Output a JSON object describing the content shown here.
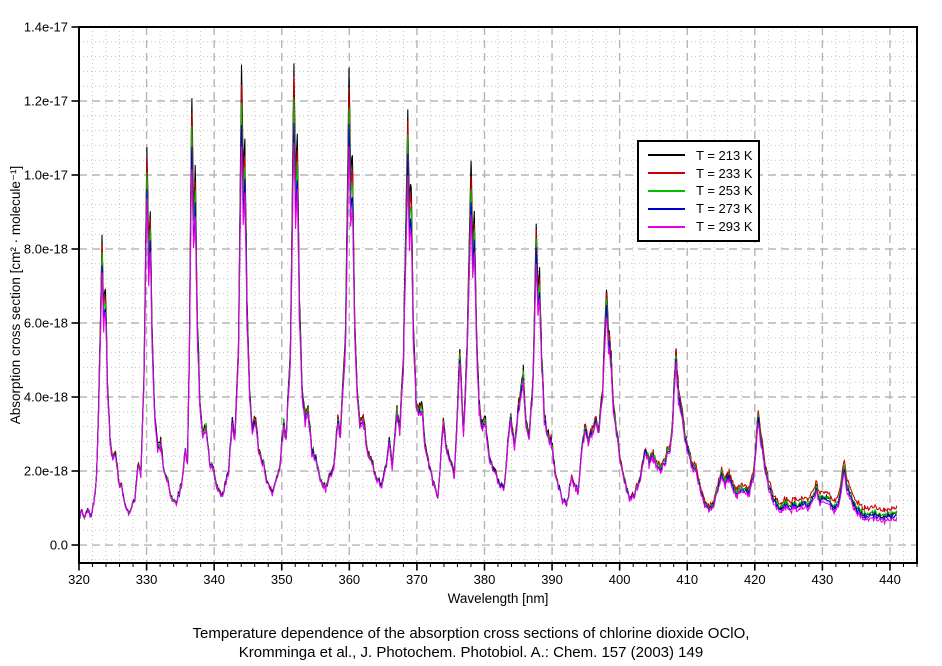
{
  "caption": {
    "line1": "Temperature dependence of the absorption cross sections of chlorine dioxide OClO,",
    "line2": "Kromminga et al., J. Photochem. Photobiol. A.: Chem. 157 (2003) 149"
  },
  "chart_data": {
    "type": "line",
    "title": "",
    "xlabel": "Wavelength [nm]",
    "ylabel": "Absorption cross section [cm² · molecule⁻¹]",
    "xlim": [
      320,
      444
    ],
    "ylim_e18": [
      -0.486,
      14.0
    ],
    "grid": {
      "major_color": "#b5b5b5",
      "minor_color": "#c6c6c6",
      "major_dash": "8 5",
      "minor_dash": "1 3"
    },
    "x_major_ticks": [
      320,
      330,
      340,
      350,
      360,
      370,
      380,
      390,
      400,
      410,
      420,
      430,
      440
    ],
    "x_minor_step_nm": 2,
    "y_major_ticks_e18": [
      0,
      2,
      4,
      6,
      8,
      10,
      12,
      14
    ],
    "y_tick_labels": [
      "0.0",
      "2.0e-18",
      "4.0e-18",
      "6.0e-18",
      "8.0e-18",
      "1.0e-17",
      "1.2e-17",
      "1.4e-17"
    ],
    "y_minor_step_e18": 0.4,
    "legend_position": "upper-right",
    "series": [
      {
        "label": "T = 213 K",
        "color": "#000000",
        "peak_compression": 0.0,
        "longwave_offset_e18": 0.0
      },
      {
        "label": "T = 233 K",
        "color": "#cc0000",
        "peak_compression": 0.04,
        "longwave_offset_e18": 0.16
      },
      {
        "label": "T = 253 K",
        "color": "#00c000",
        "peak_compression": 0.08,
        "longwave_offset_e18": 0.03
      },
      {
        "label": "T = 273 K",
        "color": "#0000cc",
        "peak_compression": 0.125,
        "longwave_offset_e18": -0.05
      },
      {
        "label": "T = 293 K",
        "color": "#e600e6",
        "peak_compression": 0.17,
        "longwave_offset_e18": -0.13
      }
    ],
    "model": {
      "note": "anchors give the T=213K cross section in 1e-18 cm2/molecule vs wavelength nm; colder->taller peaks, other temperatures derived by peak_compression (relative reduction of band maxima, valleys nearly unchanged) plus small longwave baseline offset for lambda>398nm",
      "peak_ref_e18": 13.4,
      "longwave_ramp_nm": [
        398,
        434
      ]
    },
    "anchors_213K_e18": [
      [
        320.0,
        0.78
      ],
      [
        320.4,
        0.92
      ],
      [
        320.8,
        0.7
      ],
      [
        321.3,
        0.95
      ],
      [
        321.7,
        0.78
      ],
      [
        322.2,
        1.15
      ],
      [
        322.6,
        1.9
      ],
      [
        322.9,
        3.8
      ],
      [
        323.4,
        8.45
      ],
      [
        323.65,
        6.4
      ],
      [
        323.9,
        7.1
      ],
      [
        324.2,
        4.6
      ],
      [
        324.6,
        2.9
      ],
      [
        325.0,
        2.35
      ],
      [
        325.4,
        2.55
      ],
      [
        325.9,
        1.75
      ],
      [
        326.4,
        1.55
      ],
      [
        326.9,
        1.0
      ],
      [
        327.5,
        0.85
      ],
      [
        328.3,
        1.3
      ],
      [
        328.8,
        2.3
      ],
      [
        329.15,
        1.9
      ],
      [
        329.6,
        4.5
      ],
      [
        330.05,
        10.6
      ],
      [
        330.3,
        8.2
      ],
      [
        330.55,
        8.9
      ],
      [
        330.85,
        5.6
      ],
      [
        331.25,
        3.4
      ],
      [
        331.65,
        2.7
      ],
      [
        332.1,
        2.8
      ],
      [
        332.6,
        2.0
      ],
      [
        333.1,
        1.8
      ],
      [
        333.7,
        1.3
      ],
      [
        334.4,
        1.15
      ],
      [
        335.2,
        1.7
      ],
      [
        335.75,
        2.6
      ],
      [
        336.05,
        2.2
      ],
      [
        336.3,
        5.0
      ],
      [
        336.7,
        12.3
      ],
      [
        336.95,
        9.4
      ],
      [
        337.2,
        10.2
      ],
      [
        337.5,
        6.3
      ],
      [
        337.9,
        3.9
      ],
      [
        338.3,
        3.1
      ],
      [
        338.8,
        3.3
      ],
      [
        339.3,
        2.35
      ],
      [
        339.9,
        2.1
      ],
      [
        340.5,
        1.55
      ],
      [
        341.2,
        1.35
      ],
      [
        342.1,
        2.0
      ],
      [
        342.7,
        3.5
      ],
      [
        343.05,
        2.9
      ],
      [
        343.6,
        5.4
      ],
      [
        344.05,
        13.1
      ],
      [
        344.3,
        10.0
      ],
      [
        344.55,
        10.9
      ],
      [
        344.85,
        6.7
      ],
      [
        345.25,
        4.1
      ],
      [
        345.65,
        3.3
      ],
      [
        346.15,
        3.5
      ],
      [
        346.65,
        2.5
      ],
      [
        347.25,
        2.3
      ],
      [
        347.9,
        1.7
      ],
      [
        348.6,
        1.45
      ],
      [
        349.7,
        2.1
      ],
      [
        350.3,
        3.4
      ],
      [
        350.65,
        2.9
      ],
      [
        351.3,
        5.6
      ],
      [
        351.8,
        13.35
      ],
      [
        352.05,
        10.2
      ],
      [
        352.3,
        11.1
      ],
      [
        352.6,
        6.9
      ],
      [
        353.0,
        4.3
      ],
      [
        353.4,
        3.5
      ],
      [
        353.9,
        3.7
      ],
      [
        354.45,
        2.6
      ],
      [
        355.05,
        2.4
      ],
      [
        355.7,
        1.8
      ],
      [
        356.5,
        1.55
      ],
      [
        357.7,
        2.2
      ],
      [
        358.3,
        3.5
      ],
      [
        358.65,
        3.0
      ],
      [
        359.4,
        5.5
      ],
      [
        359.95,
        12.85
      ],
      [
        360.2,
        9.8
      ],
      [
        360.45,
        10.7
      ],
      [
        360.75,
        6.6
      ],
      [
        361.15,
        4.2
      ],
      [
        361.55,
        3.4
      ],
      [
        362.05,
        3.6
      ],
      [
        362.6,
        2.6
      ],
      [
        363.2,
        2.4
      ],
      [
        363.9,
        1.85
      ],
      [
        364.8,
        1.6
      ],
      [
        365.5,
        2.2
      ],
      [
        365.9,
        2.8
      ],
      [
        366.35,
        2.2
      ],
      [
        367.05,
        3.7
      ],
      [
        367.45,
        3.2
      ],
      [
        368.0,
        5.2
      ],
      [
        368.65,
        11.85
      ],
      [
        368.9,
        9.0
      ],
      [
        369.15,
        9.9
      ],
      [
        369.45,
        6.2
      ],
      [
        369.85,
        4.1
      ],
      [
        370.25,
        3.6
      ],
      [
        370.7,
        3.9
      ],
      [
        371.2,
        2.8
      ],
      [
        371.7,
        2.3
      ],
      [
        372.4,
        1.7
      ],
      [
        373.1,
        1.3
      ],
      [
        373.9,
        3.4
      ],
      [
        374.4,
        2.6
      ],
      [
        375.0,
        2.3
      ],
      [
        375.55,
        1.9
      ],
      [
        376.35,
        5.25
      ],
      [
        376.9,
        3.1
      ],
      [
        377.4,
        5.3
      ],
      [
        378.0,
        10.5
      ],
      [
        378.25,
        8.1
      ],
      [
        378.5,
        8.8
      ],
      [
        378.8,
        6.0
      ],
      [
        379.2,
        3.9
      ],
      [
        379.65,
        3.3
      ],
      [
        380.15,
        3.4
      ],
      [
        380.7,
        2.4
      ],
      [
        381.35,
        2.1
      ],
      [
        382.1,
        1.7
      ],
      [
        382.9,
        1.6
      ],
      [
        383.6,
        3.1
      ],
      [
        383.95,
        3.5
      ],
      [
        384.45,
        2.7
      ],
      [
        385.15,
        4.0
      ],
      [
        385.75,
        4.7
      ],
      [
        386.15,
        3.3
      ],
      [
        386.6,
        3.0
      ],
      [
        387.2,
        4.6
      ],
      [
        387.65,
        8.75
      ],
      [
        387.9,
        6.9
      ],
      [
        388.15,
        7.4
      ],
      [
        388.45,
        5.2
      ],
      [
        388.85,
        3.6
      ],
      [
        389.3,
        3.0
      ],
      [
        389.85,
        2.9
      ],
      [
        390.4,
        2.1
      ],
      [
        391.0,
        1.55
      ],
      [
        391.6,
        1.2
      ],
      [
        392.2,
        1.15
      ],
      [
        392.9,
        1.85
      ],
      [
        393.45,
        1.6
      ],
      [
        393.85,
        1.5
      ],
      [
        394.5,
        2.9
      ],
      [
        394.95,
        3.3
      ],
      [
        395.35,
        2.8
      ],
      [
        395.95,
        3.2
      ],
      [
        396.55,
        3.5
      ],
      [
        396.95,
        3.2
      ],
      [
        397.5,
        4.4
      ],
      [
        398.05,
        7.0
      ],
      [
        398.35,
        5.9
      ],
      [
        398.65,
        5.4
      ],
      [
        399.05,
        4.0
      ],
      [
        399.55,
        3.1
      ],
      [
        400.1,
        2.3
      ],
      [
        400.8,
        1.7
      ],
      [
        401.5,
        1.3
      ],
      [
        402.2,
        1.35
      ],
      [
        402.9,
        1.8
      ],
      [
        403.45,
        2.2
      ],
      [
        403.85,
        2.7
      ],
      [
        404.35,
        2.3
      ],
      [
        404.95,
        2.5
      ],
      [
        405.55,
        2.2
      ],
      [
        406.2,
        2.1
      ],
      [
        406.9,
        2.5
      ],
      [
        407.45,
        2.6
      ],
      [
        407.9,
        3.6
      ],
      [
        408.3,
        5.35
      ],
      [
        408.7,
        4.3
      ],
      [
        409.1,
        3.9
      ],
      [
        409.6,
        3.1
      ],
      [
        410.1,
        2.6
      ],
      [
        410.7,
        2.2
      ],
      [
        411.3,
        2.1
      ],
      [
        411.9,
        1.6
      ],
      [
        412.6,
        1.1
      ],
      [
        413.2,
        0.95
      ],
      [
        413.9,
        1.15
      ],
      [
        414.6,
        1.6
      ],
      [
        415.15,
        2.0
      ],
      [
        415.65,
        1.7
      ],
      [
        416.2,
        1.9
      ],
      [
        416.8,
        1.55
      ],
      [
        417.4,
        1.4
      ],
      [
        418.0,
        1.6
      ],
      [
        418.55,
        1.5
      ],
      [
        419.2,
        1.45
      ],
      [
        419.85,
        2.0
      ],
      [
        420.5,
        3.6
      ],
      [
        420.95,
        2.9
      ],
      [
        421.35,
        2.4
      ],
      [
        421.9,
        1.8
      ],
      [
        422.5,
        1.4
      ],
      [
        423.2,
        1.1
      ],
      [
        423.9,
        1.0
      ],
      [
        424.6,
        1.15
      ],
      [
        425.3,
        1.05
      ],
      [
        425.95,
        1.15
      ],
      [
        426.6,
        1.1
      ],
      [
        427.25,
        1.2
      ],
      [
        427.9,
        1.1
      ],
      [
        428.6,
        1.3
      ],
      [
        429.1,
        1.55
      ],
      [
        429.6,
        1.3
      ],
      [
        430.1,
        1.25
      ],
      [
        430.6,
        1.35
      ],
      [
        431.2,
        1.15
      ],
      [
        431.8,
        1.05
      ],
      [
        432.5,
        1.3
      ],
      [
        433.2,
        2.2
      ],
      [
        433.7,
        1.6
      ],
      [
        434.2,
        1.35
      ],
      [
        434.8,
        1.1
      ],
      [
        435.5,
        0.95
      ],
      [
        436.2,
        0.85
      ],
      [
        437.0,
        0.82
      ],
      [
        437.8,
        0.87
      ],
      [
        438.5,
        0.8
      ],
      [
        439.2,
        0.78
      ],
      [
        440.0,
        0.83
      ],
      [
        440.6,
        0.8
      ],
      [
        441.0,
        0.92
      ]
    ]
  }
}
